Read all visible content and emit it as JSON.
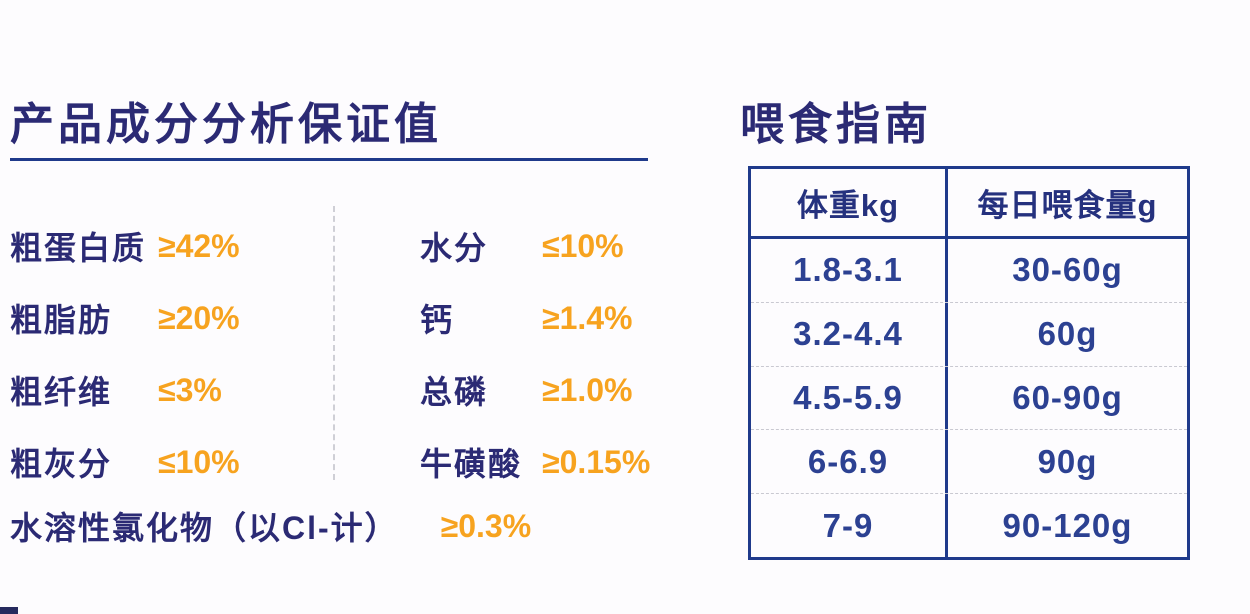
{
  "colors": {
    "navy_title": "#2b2a74",
    "navy_table": "#1f3a8b",
    "orange_value": "#f7a31f"
  },
  "analysis": {
    "title": "产品成分分析保证值",
    "column1": [
      {
        "label": "粗蛋白质",
        "value": "≥42%"
      },
      {
        "label": "粗脂肪",
        "value": "≥20%"
      },
      {
        "label": "粗纤维",
        "value": "≤3%"
      },
      {
        "label": "粗灰分",
        "value": "≤10%"
      }
    ],
    "column2": [
      {
        "label": "水分",
        "value": "≤10%"
      },
      {
        "label": "钙",
        "value": "≥1.4%"
      },
      {
        "label": "总磷",
        "value": "≥1.0%"
      },
      {
        "label": "牛磺酸",
        "value": "≥0.15%"
      }
    ],
    "wide_row": {
      "label": "水溶性氯化物（以Cl-计）",
      "value": "≥0.3%"
    }
  },
  "feeding": {
    "title": "喂食指南",
    "table": {
      "headers": [
        "体重kg",
        "每日喂食量g"
      ],
      "rows": [
        [
          "1.8-3.1",
          "30-60g"
        ],
        [
          "3.2-4.4",
          "60g"
        ],
        [
          "4.5-5.9",
          "60-90g"
        ],
        [
          "6-6.9",
          "90g"
        ],
        [
          "7-9",
          "90-120g"
        ]
      ]
    }
  }
}
